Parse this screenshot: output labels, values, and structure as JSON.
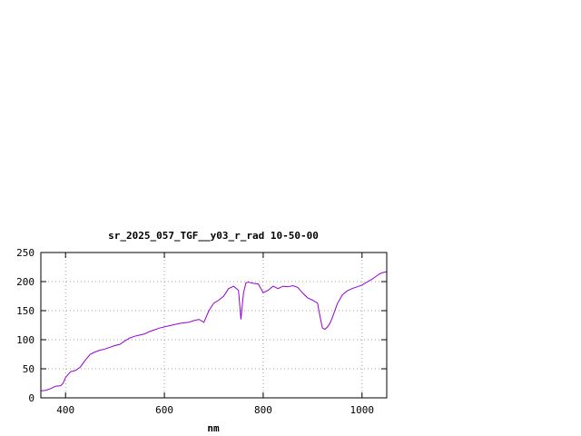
{
  "chart_data": {
    "type": "line",
    "title": "sr_2025_057_TGF__y03_r_rad 10-50-00",
    "xlabel": "nm",
    "ylabel": "",
    "xlim": [
      350,
      1050
    ],
    "ylim": [
      0,
      250
    ],
    "xticks": [
      400,
      600,
      800,
      1000
    ],
    "yticks": [
      0,
      50,
      100,
      150,
      200,
      250
    ],
    "grid": true,
    "line_color": "#9400d3",
    "series": [
      {
        "name": "",
        "x": [
          350,
          360,
          370,
          380,
          390,
          395,
          400,
          410,
          420,
          430,
          440,
          450,
          460,
          470,
          480,
          490,
          500,
          510,
          520,
          530,
          540,
          550,
          560,
          570,
          580,
          590,
          600,
          610,
          620,
          630,
          640,
          650,
          660,
          670,
          680,
          690,
          700,
          710,
          720,
          730,
          740,
          750,
          755,
          760,
          765,
          770,
          775,
          780,
          790,
          800,
          810,
          820,
          830,
          840,
          850,
          860,
          870,
          880,
          890,
          895,
          900,
          910,
          915,
          920,
          925,
          930,
          935,
          940,
          950,
          960,
          970,
          980,
          990,
          1000,
          1010,
          1020,
          1030,
          1035,
          1040,
          1050
        ],
        "y": [
          12,
          13,
          16,
          20,
          21,
          25,
          35,
          45,
          47,
          53,
          65,
          75,
          79,
          82,
          84,
          87,
          90,
          92,
          98,
          103,
          106,
          108,
          110,
          114,
          117,
          120,
          122,
          124,
          126,
          128,
          129,
          130,
          133,
          135,
          130,
          150,
          163,
          168,
          175,
          188,
          192,
          185,
          135,
          180,
          198,
          199,
          198,
          197,
          196,
          181,
          185,
          192,
          188,
          192,
          191,
          193,
          190,
          180,
          172,
          170,
          168,
          163,
          140,
          120,
          118,
          122,
          128,
          138,
          162,
          177,
          184,
          188,
          191,
          194,
          199,
          204,
          210,
          213,
          215,
          217
        ]
      }
    ]
  }
}
